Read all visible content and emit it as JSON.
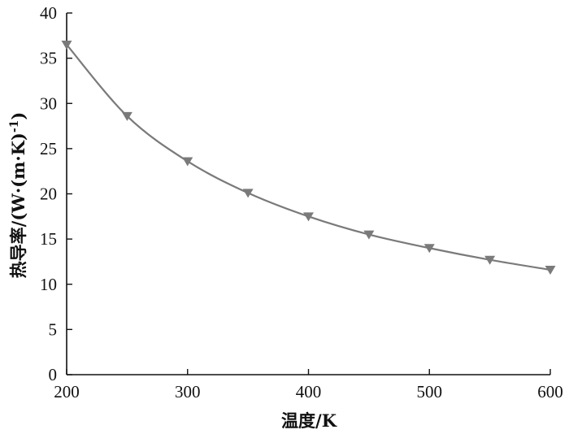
{
  "chart_data": {
    "type": "line",
    "xlabel": "温度/K",
    "ylabel_main": "热导率/(W·(m·K)",
    "ylabel_sup": "-1",
    "ylabel_close": ")",
    "xlim": [
      200,
      600
    ],
    "ylim": [
      0,
      40
    ],
    "xticks": [
      200,
      300,
      400,
      500,
      600
    ],
    "yticks": [
      0,
      5,
      10,
      15,
      20,
      25,
      30,
      35,
      40
    ],
    "grid": false,
    "marker": "triangle-down",
    "color": "#7a7a7a",
    "series": [
      {
        "x": [
          200,
          250,
          300,
          350,
          400,
          450,
          500,
          550,
          600
        ],
        "y": [
          36.5,
          28.6,
          23.6,
          20.1,
          17.5,
          15.5,
          14.0,
          12.7,
          11.6
        ]
      }
    ]
  }
}
